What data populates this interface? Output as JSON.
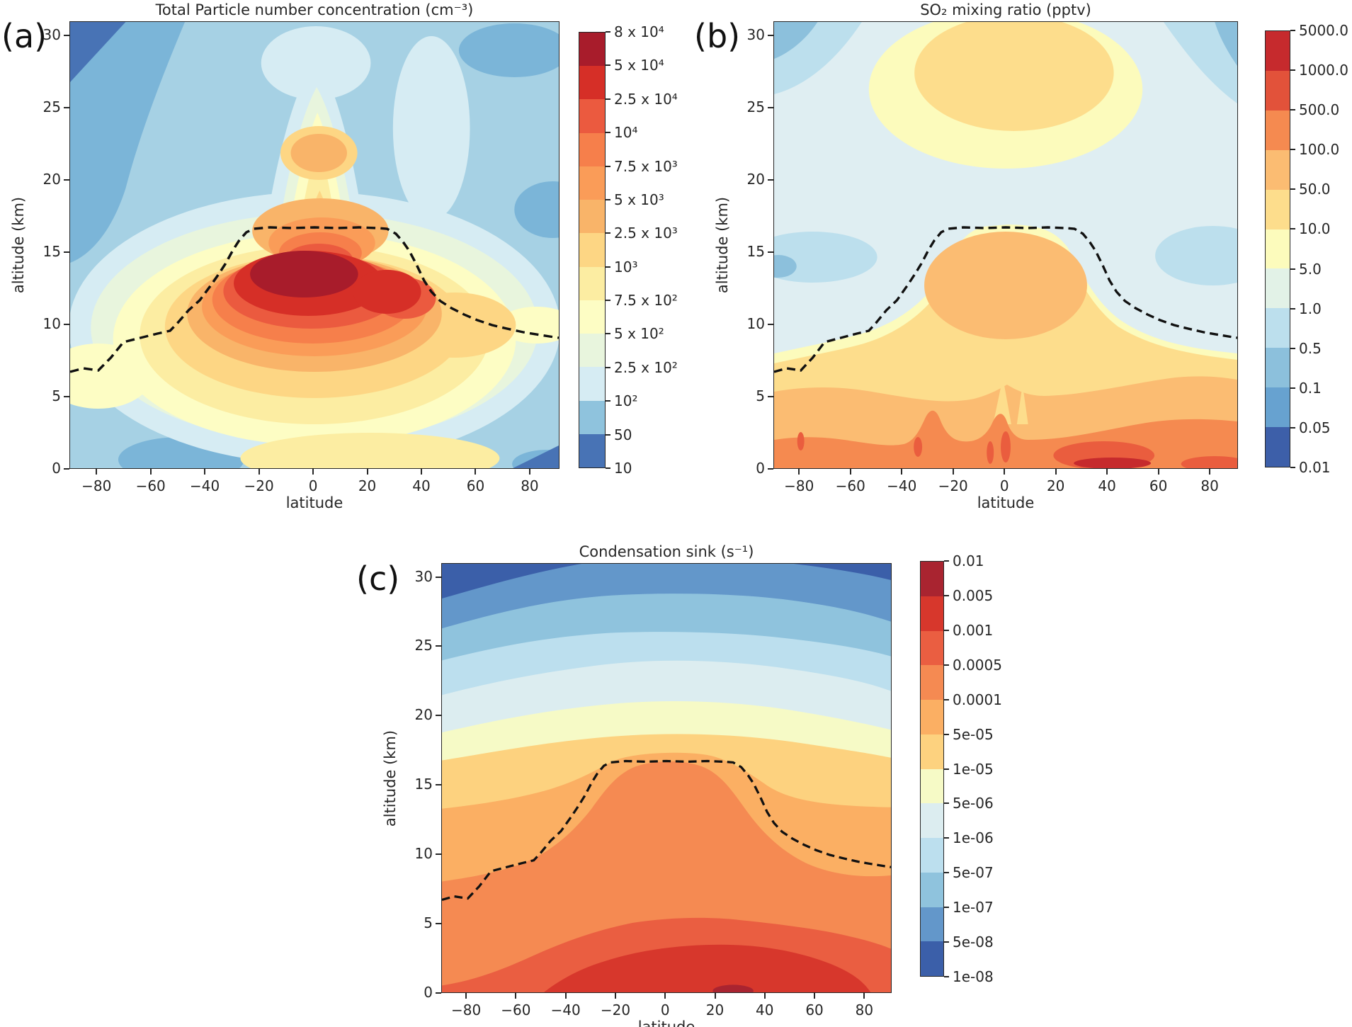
{
  "figure": {
    "background": "#ffffff",
    "description": "Three latitude-altitude filled contour cross sections with RdYlBu_r colormap and dashed tropopause overlay"
  },
  "panels": [
    {
      "label": "(a)",
      "title": "Total Particle number concentration (cm⁻³)",
      "xlabel": "latitude",
      "ylabel": "altitude (km)",
      "x_range": [
        -90,
        91
      ],
      "y_range": [
        0,
        31
      ],
      "x_tick_values": [
        -80,
        -60,
        -40,
        -20,
        0,
        20,
        40,
        60,
        80
      ],
      "x_tick_labels": [
        "−80",
        "−60",
        "−40",
        "−20",
        "0",
        "20",
        "40",
        "60",
        "80"
      ],
      "y_tick_values": [
        0,
        5,
        10,
        15,
        20,
        25,
        30
      ],
      "y_tick_labels": [
        "0",
        "5",
        "10",
        "15",
        "20",
        "25",
        "30"
      ],
      "colorbar": {
        "tick_labels_top_to_bottom": [
          "8 x 10⁴",
          "5 x 10⁴",
          "2.5 x 10⁴",
          "10⁴",
          "7.5 x 10³",
          "5 x 10³",
          "2.5 x 10³",
          "10³",
          "7.5 x 10²",
          "5 x 10²",
          "2.5 x 10²",
          "10²",
          "50",
          "10"
        ],
        "segment_colors_top_to_bottom": [
          "#a81c2b",
          "#d62f27",
          "#eb5a3f",
          "#f67f4b",
          "#fa9c58",
          "#f9b469",
          "#fdd684",
          "#fceda2",
          "#fdfdc4",
          "#e8f5dd",
          "#d6ecf3",
          "#8fc3dd",
          "#4873b5"
        ]
      }
    },
    {
      "label": "(b)",
      "title": "SO₂ mixing ratio (pptv)",
      "xlabel": "latitude",
      "ylabel": "altitude (km)",
      "x_range": [
        -90,
        91
      ],
      "y_range": [
        0,
        31
      ],
      "x_tick_values": [
        -80,
        -60,
        -40,
        -20,
        0,
        20,
        40,
        60,
        80
      ],
      "x_tick_labels": [
        "−80",
        "−60",
        "−40",
        "−20",
        "0",
        "20",
        "40",
        "60",
        "80"
      ],
      "y_tick_values": [
        0,
        5,
        10,
        15,
        20,
        25,
        30
      ],
      "y_tick_labels": [
        "0",
        "5",
        "10",
        "15",
        "20",
        "25",
        "30"
      ],
      "colorbar": {
        "tick_labels_top_to_bottom": [
          "5000.0",
          "1000.0",
          "500.0",
          "100.0",
          "50.0",
          "10.0",
          "5.0",
          "1.0",
          "0.5",
          "0.1",
          "0.05",
          "0.01"
        ],
        "segment_colors_top_to_bottom": [
          "#c62a2d",
          "#e2523a",
          "#f58a50",
          "#fbbc72",
          "#fddd8c",
          "#fcfbbc",
          "#e2f2e7",
          "#bcdfed",
          "#8cc0dc",
          "#67a2d0",
          "#3d5fa9"
        ]
      }
    },
    {
      "label": "(c)",
      "title": "Condensation sink (s⁻¹)",
      "xlabel": "latitude",
      "ylabel": "altitude (km)",
      "x_range": [
        -90,
        91
      ],
      "y_range": [
        0,
        31
      ],
      "x_tick_values": [
        -80,
        -60,
        -40,
        -20,
        0,
        20,
        40,
        60,
        80
      ],
      "x_tick_labels": [
        "−80",
        "−60",
        "−40",
        "−20",
        "0",
        "20",
        "40",
        "60",
        "80"
      ],
      "y_tick_values": [
        0,
        5,
        10,
        15,
        20,
        25,
        30
      ],
      "y_tick_labels": [
        "0",
        "5",
        "10",
        "15",
        "20",
        "25",
        "30"
      ],
      "colorbar": {
        "tick_labels_top_to_bottom": [
          "0.01",
          "0.005",
          "0.001",
          "0.0005",
          "0.0001",
          "5e-05",
          "1e-05",
          "5e-06",
          "1e-06",
          "5e-07",
          "1e-07",
          "5e-08",
          "1e-08"
        ],
        "segment_colors_top_to_bottom": [
          "#a92430",
          "#d7372c",
          "#ea5e41",
          "#f58a52",
          "#fbaf63",
          "#fdd27f",
          "#f6fac6",
          "#dcedf0",
          "#bcdfee",
          "#8fc3dd",
          "#6397ca",
          "#3b5fa9"
        ]
      }
    }
  ],
  "chart_data": [
    {
      "type": "heatmap",
      "subtype": "filled-contour",
      "panel": "a",
      "title": "Total Particle number concentration (cm⁻³)",
      "xlabel": "latitude",
      "ylabel": "altitude (km)",
      "xlim": [
        -90,
        90
      ],
      "ylim": [
        0,
        31
      ],
      "levels": [
        10,
        50,
        100,
        250,
        500,
        750,
        1000,
        2500,
        5000,
        7500,
        10000,
        25000,
        50000,
        80000
      ],
      "colormap": "RdYlBu_r",
      "features": "Maximum >5x10⁴ cm⁻³ centered near the equator at 12–16 km altitude (dark red core spanning roughly −25° to +25°); concentric warm halo decreasing outward; narrow plume of enhanced values (10³–5x10³) rising above the tropical maximum to ~28 km with a secondary 5x10³–7.5x10³ spot near 22 km; broad 5x10²–2.5x10³ band below 8 km at most latitudes; low values (<2.5x10²) at high latitudes aloft, darkest blue (<50) at top-left corner and in surface patches near −60° and −20°."
    },
    {
      "type": "heatmap",
      "subtype": "filled-contour",
      "panel": "b",
      "title": "SO₂ mixing ratio (pptv)",
      "xlabel": "latitude",
      "ylabel": "altitude (km)",
      "xlim": [
        -90,
        90
      ],
      "ylim": [
        0,
        31
      ],
      "levels": [
        0.01,
        0.05,
        0.1,
        0.5,
        1,
        5,
        10,
        50,
        100,
        500,
        1000,
        5000
      ],
      "colormap": "RdYlBu_r",
      "features": "10–50 pptv (tan) throughout the troposphere below the tropopause, with a 50–100 pptv mound under the tropical tropopause; surface maxima 100–1000 pptv between 10°–60° N with a >1000 pptv hotspot near 30°–45° N; narrow enhanced spikes near the equator and −35°; upper-stratospheric enhancement of 10–50 pptv centered near 27 km over −30° to +45°; background 1–5 pptv (pale blue) in the lower stratosphere with 0.5–1 pptv patches near ±60°–90° at 14–16 km and top corners."
    },
    {
      "type": "heatmap",
      "subtype": "filled-contour",
      "panel": "c",
      "title": "Condensation sink (s⁻¹)",
      "xlabel": "latitude",
      "ylabel": "altitude (km)",
      "xlim": [
        -90,
        90
      ],
      "ylim": [
        0,
        31
      ],
      "levels": [
        1e-08,
        5e-08,
        1e-07,
        5e-07,
        1e-06,
        5e-06,
        1e-05,
        5e-05,
        0.0001,
        0.0005,
        0.001,
        0.005,
        0.01
      ],
      "colormap": "RdYlBu_r",
      "features": "Quasi-horizontal layering decreasing with altitude: >0.001 s⁻¹ (red) below ~4 km centered on the tropics with a small >0.005 s⁻¹ spot near 25°–30° at the surface; 0.0005–0.001 band near 2–5 km; a 0.0001–0.0005 orange mound filling the tropical troposphere up to the ~17 km tropopause; successive 5e-05, 1e-05, 5e-06 yellow bands near 13–20 km bowing upward over the equator; blue bands (<1e-06) above ~22 km, darkest (<5e-08) at the top-left corner."
    }
  ],
  "tropopause_overlay": {
    "style": "black dashed line",
    "description": "Thermal tropopause altitude shown in every panel",
    "points_lat_km": [
      [
        -90,
        6.7
      ],
      [
        -80,
        8.6
      ],
      [
        -70,
        9.3
      ],
      [
        -60,
        9.9
      ],
      [
        -50,
        10.8
      ],
      [
        -40,
        12.2
      ],
      [
        -30,
        15.0
      ],
      [
        -25,
        16.6
      ],
      [
        0,
        16.7
      ],
      [
        25,
        16.7
      ],
      [
        30,
        16.2
      ],
      [
        40,
        13.0
      ],
      [
        50,
        11.3
      ],
      [
        60,
        10.3
      ],
      [
        70,
        9.7
      ],
      [
        80,
        9.2
      ],
      [
        90,
        9.0
      ]
    ]
  }
}
